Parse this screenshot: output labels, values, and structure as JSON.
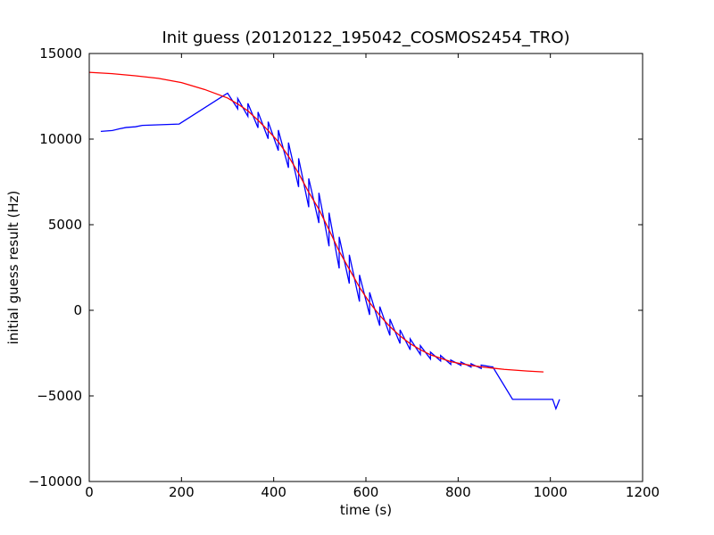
{
  "chart_data": {
    "type": "line",
    "title": "Init guess (20120122_195042_COSMOS2454_TRO)",
    "x_label": "time (s)",
    "y_label": "initial guess result (Hz)",
    "xlim": [
      0,
      1200
    ],
    "xticks": [
      0,
      200,
      400,
      600,
      800,
      1000,
      1200
    ],
    "ylim": [
      -10000,
      15000
    ],
    "yticks": [
      {
        "value": -10000,
        "label": "−10000"
      },
      {
        "value": -5000,
        "label": "−5000"
      },
      0,
      5000,
      10000,
      15000
    ],
    "series": [
      {
        "color": "#0000ff",
        "x": [
          25,
          50,
          65,
          80,
          100,
          115,
          195,
          295,
          300,
          322,
          322,
          344,
          344,
          366,
          366,
          388,
          388,
          410,
          410,
          432,
          432,
          454,
          454,
          476,
          476,
          498,
          498,
          520,
          520,
          542,
          542,
          564,
          564,
          586,
          586,
          608,
          608,
          630,
          630,
          652,
          652,
          674,
          674,
          696,
          696,
          718,
          718,
          740,
          740,
          762,
          762,
          784,
          784,
          806,
          806,
          828,
          828,
          850,
          850,
          872,
          875,
          918,
          1005,
          1012,
          1020
        ],
        "values": [
          10450,
          10500,
          10600,
          10680,
          10720,
          10800,
          10880,
          12600,
          12680,
          11770,
          12370,
          11330,
          12090,
          10660,
          11580,
          10020,
          11020,
          9330,
          10530,
          8320,
          9800,
          7200,
          8880,
          6020,
          7700,
          5100,
          6860,
          3740,
          5700,
          2450,
          4290,
          1560,
          3240,
          510,
          2070,
          -270,
          1050,
          -900,
          220,
          -1470,
          -510,
          -1940,
          -1140,
          -2310,
          -1670,
          -2580,
          -2060,
          -2840,
          -2440,
          -2960,
          -2640,
          -3160,
          -2900,
          -3220,
          -3020,
          -3320,
          -3120,
          -3400,
          -3200,
          -3300,
          -3300,
          -5200,
          -5200,
          -5750,
          -5200
        ]
      },
      {
        "color": "#ff0000",
        "x": [
          0,
          50,
          100,
          150,
          200,
          250,
          300,
          322,
          344,
          366,
          388,
          410,
          432,
          454,
          476,
          498,
          520,
          542,
          564,
          586,
          608,
          630,
          652,
          674,
          696,
          718,
          740,
          762,
          784,
          806,
          828,
          850,
          872,
          900,
          950,
          985
        ],
        "values": [
          13900,
          13820,
          13700,
          13550,
          13300,
          12900,
          12400,
          12050,
          11650,
          11100,
          10500,
          9850,
          9000,
          8000,
          6900,
          5900,
          4700,
          3450,
          2400,
          1350,
          450,
          -300,
          -950,
          -1500,
          -1950,
          -2300,
          -2600,
          -2800,
          -3000,
          -3120,
          -3220,
          -3300,
          -3370,
          -3450,
          -3550,
          -3600
        ]
      }
    ]
  }
}
